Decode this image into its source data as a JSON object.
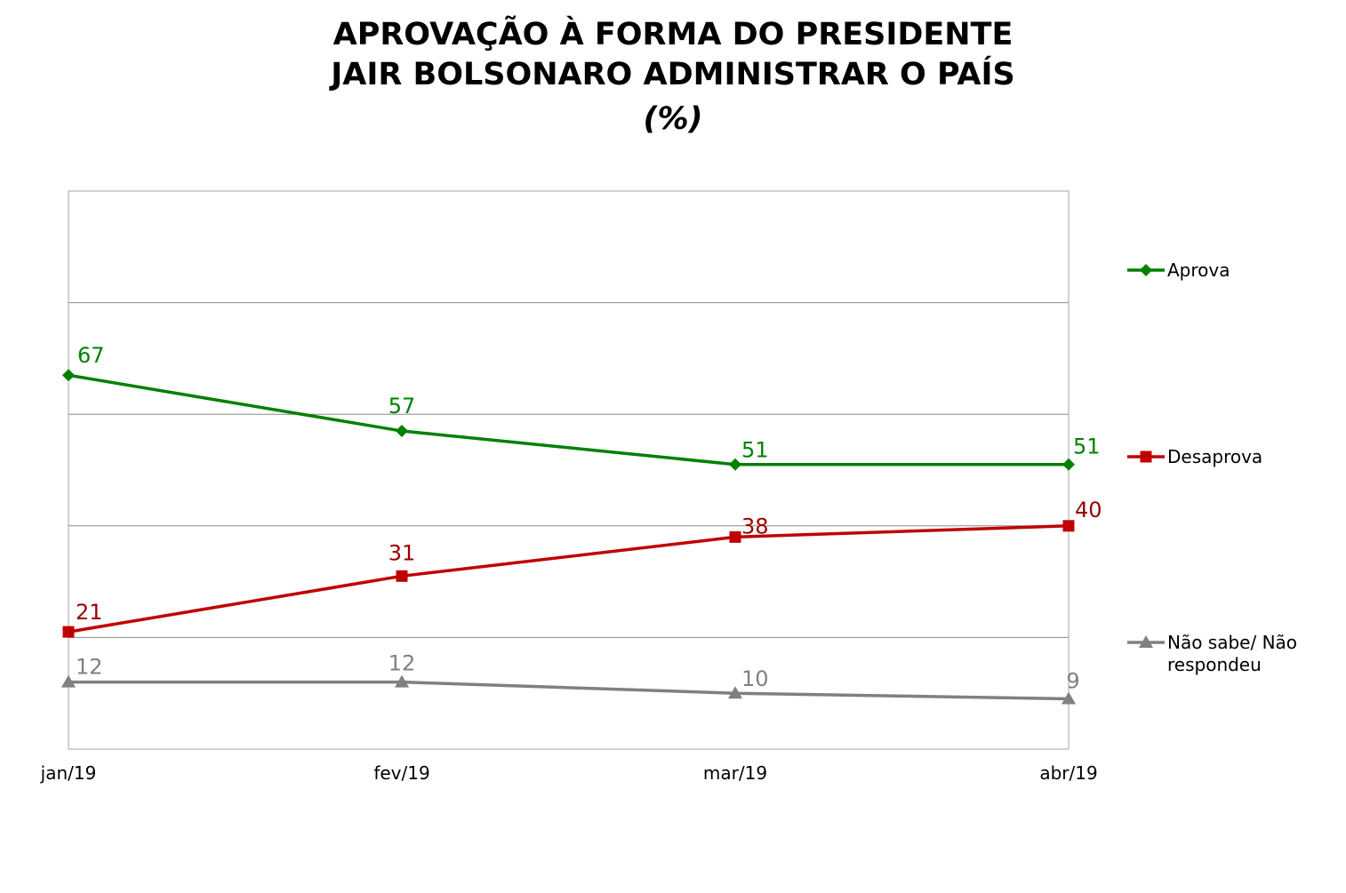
{
  "chart_data": {
    "type": "line",
    "title_lines": [
      "APROVAÇÃO À FORMA DO PRESIDENTE",
      "JAIR BOLSONARO ADMINISTRAR O PAÍS",
      "(%)"
    ],
    "categories": [
      "jan/19",
      "fev/19",
      "mar/19",
      "abr/19"
    ],
    "ylim": [
      0,
      100
    ],
    "y_grid_step": 20,
    "grid": true,
    "legend_position": "right",
    "series": [
      {
        "name": "Aprova",
        "values": [
          67,
          57,
          51,
          51
        ],
        "color": "#008000",
        "label_color": "#008000",
        "marker": "diamond"
      },
      {
        "name": "Desaprova",
        "values": [
          21,
          31,
          38,
          40
        ],
        "color": "#c00000",
        "label_color": "#990000",
        "marker": "square"
      },
      {
        "name": "Não sabe/ Não respondeu",
        "name_lines": [
          "Não sabe/ Não",
          "respondeu"
        ],
        "values": [
          12,
          12,
          10,
          9
        ],
        "color": "#808080",
        "label_color": "#808080",
        "marker": "triangle"
      }
    ]
  }
}
